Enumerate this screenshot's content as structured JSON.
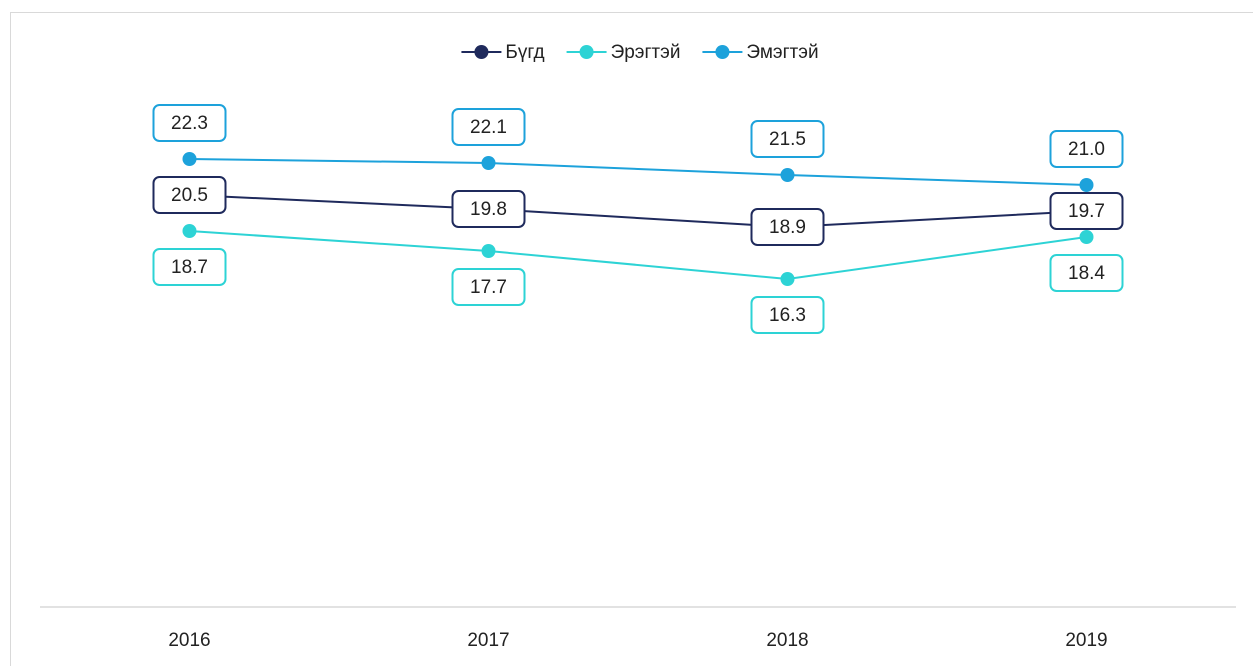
{
  "chart_data": {
    "type": "line",
    "categories": [
      "2016",
      "2017",
      "2018",
      "2019"
    ],
    "series": [
      {
        "name": "Бүгд",
        "color": "#1f2a5c",
        "values": [
          20.5,
          19.8,
          18.9,
          19.7
        ]
      },
      {
        "name": "Эрэгтэй",
        "color": "#2dd3d5",
        "values": [
          18.7,
          17.7,
          16.3,
          18.4
        ]
      },
      {
        "name": "Эмэгтэй",
        "color": "#1da2db",
        "values": [
          22.3,
          22.1,
          21.5,
          21.0
        ],
        "value_labels": [
          "22.3",
          "22.1",
          "21.5",
          "21.0"
        ]
      }
    ],
    "ylim": [
      0,
      25
    ],
    "grid": false,
    "legend": "top"
  }
}
